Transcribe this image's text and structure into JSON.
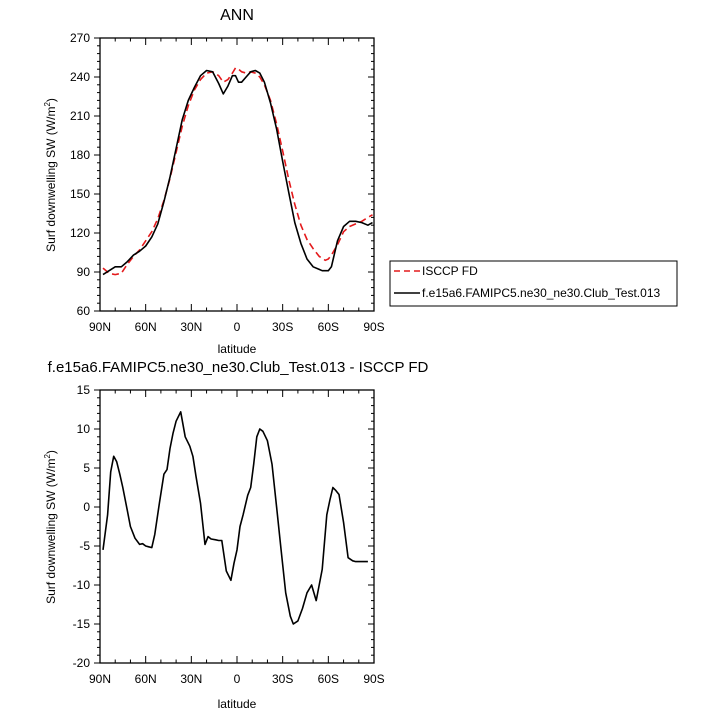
{
  "chart_data": [
    {
      "type": "line",
      "title": "ANN",
      "xlabel": "latitude",
      "ylabel": "Surf downwelling SW (W/m",
      "ylabel_sup": "2",
      "ylabel_close": ")",
      "xlim": [
        90,
        -90
      ],
      "ylim": [
        60,
        270
      ],
      "xticks": [
        90,
        60,
        30,
        0,
        -30,
        -60,
        -90
      ],
      "xtick_labels": [
        "90N",
        "60N",
        "30N",
        "0",
        "30S",
        "60S",
        "90S"
      ],
      "yticks": [
        60,
        90,
        120,
        150,
        180,
        210,
        240,
        270
      ],
      "ytick_labels": [
        "60",
        "90",
        "120",
        "150",
        "180",
        "210",
        "240",
        "270"
      ],
      "legend": "outside-right",
      "series": [
        {
          "name": "ISCCP FD",
          "color": "#e41a1c",
          "dash": true,
          "x": [
            88,
            84,
            80,
            76,
            72,
            68,
            64,
            60,
            56,
            52,
            48,
            44,
            40,
            36,
            32,
            28,
            24,
            20,
            16,
            12,
            9,
            6,
            3,
            1,
            -1,
            -3,
            -6,
            -9,
            -12,
            -15,
            -18,
            -22,
            -26,
            -30,
            -34,
            -38,
            -42,
            -46,
            -50,
            -54,
            -58,
            -60,
            -62,
            -66,
            -70,
            -74,
            -78,
            -82,
            -86,
            -89
          ],
          "y": [
            93,
            89,
            88,
            89,
            96,
            102,
            107,
            114,
            121,
            131,
            145,
            162,
            182,
            202,
            218,
            230,
            238,
            243,
            244,
            241,
            236,
            238,
            243,
            247,
            246,
            244,
            243,
            244,
            243,
            240,
            234,
            222,
            204,
            183,
            161,
            142,
            126,
            115,
            108,
            102,
            99,
            100,
            103,
            111,
            121,
            125,
            127,
            129,
            132,
            134
          ]
        },
        {
          "name": "f.e15a6.FAMIPC5.ne30_ne30.Club_Test.013",
          "color": "#000000",
          "dash": false,
          "x": [
            88,
            84,
            80,
            76,
            72,
            68,
            64,
            60,
            56,
            52,
            48,
            44,
            40,
            36,
            32,
            28,
            24,
            20,
            16,
            12,
            9,
            6,
            3,
            1,
            -1,
            -3,
            -6,
            -9,
            -12,
            -15,
            -18,
            -22,
            -26,
            -30,
            -34,
            -38,
            -42,
            -46,
            -50,
            -54,
            -56,
            -58,
            -60,
            -62,
            -66,
            -70,
            -74,
            -78,
            -82,
            -86,
            -89
          ],
          "y": [
            88,
            91,
            94,
            94,
            98,
            103,
            106,
            110,
            117,
            127,
            144,
            163,
            185,
            207,
            222,
            232,
            241,
            245,
            244,
            235,
            227,
            233,
            241,
            241,
            236,
            236,
            240,
            244,
            245,
            243,
            236,
            220,
            200,
            175,
            151,
            128,
            112,
            100,
            94,
            92,
            91,
            91,
            91,
            94,
            114,
            125,
            129,
            129,
            128,
            126,
            128
          ]
        }
      ]
    },
    {
      "type": "line",
      "title": "f.e15a6.FAMIPC5.ne30_ne30.Club_Test.013 - ISCCP FD",
      "xlabel": "latitude",
      "ylabel": "Surf downwelling SW (W/m",
      "ylabel_sup": "2",
      "ylabel_close": ")",
      "xlim": [
        90,
        -90
      ],
      "ylim": [
        -20,
        15
      ],
      "xticks": [
        90,
        60,
        30,
        0,
        -30,
        -60,
        -90
      ],
      "xtick_labels": [
        "90N",
        "60N",
        "30N",
        "0",
        "30S",
        "60S",
        "90S"
      ],
      "yticks": [
        -20,
        -15,
        -10,
        -5,
        0,
        5,
        10,
        15
      ],
      "ytick_labels": [
        "-20",
        "-15",
        "-10",
        "-5",
        "0",
        "5",
        "10",
        "15"
      ],
      "series": [
        {
          "color": "#000000",
          "dash": false,
          "x": [
            88,
            85,
            83,
            81,
            79,
            77,
            75,
            72,
            70,
            67,
            64,
            62,
            60,
            58,
            56,
            54,
            51,
            48,
            46,
            44,
            42,
            40,
            37,
            34,
            31,
            29,
            27,
            24,
            21,
            19,
            17,
            14,
            12,
            10,
            7,
            4,
            2,
            0,
            -2,
            -4,
            -7,
            -9,
            -11,
            -13,
            -15,
            -17,
            -20,
            -23,
            -26,
            -29,
            -32,
            -35,
            -37,
            -40,
            -43,
            -46,
            -49,
            -52,
            -54,
            -56,
            -59,
            -61,
            -63,
            -65,
            -67,
            -70,
            -73,
            -76,
            -78,
            -80,
            -83,
            -86
          ],
          "y": [
            -5.5,
            -1,
            4.5,
            6.5,
            5.8,
            4.2,
            2.5,
            -0.5,
            -2.5,
            -4,
            -4.8,
            -4.7,
            -5,
            -5.1,
            -5.2,
            -3.5,
            0.5,
            4.2,
            4.8,
            7.5,
            9.5,
            11,
            12.2,
            9,
            7.8,
            6.5,
            4,
            0.5,
            -4.8,
            -3.8,
            -4.1,
            -4.2,
            -4.3,
            -4.3,
            -8.2,
            -9.4,
            -7.2,
            -5.5,
            -2.5,
            -1,
            1.5,
            2.5,
            5.5,
            9,
            10,
            9.7,
            8.5,
            5.5,
            0,
            -5.5,
            -11,
            -14,
            -15,
            -14.6,
            -13,
            -11,
            -10,
            -12,
            -10,
            -8,
            -1,
            0.9,
            2.5,
            2.1,
            1.6,
            -2,
            -6.5,
            -6.9,
            -7,
            -7,
            -7,
            -7
          ]
        }
      ]
    }
  ]
}
